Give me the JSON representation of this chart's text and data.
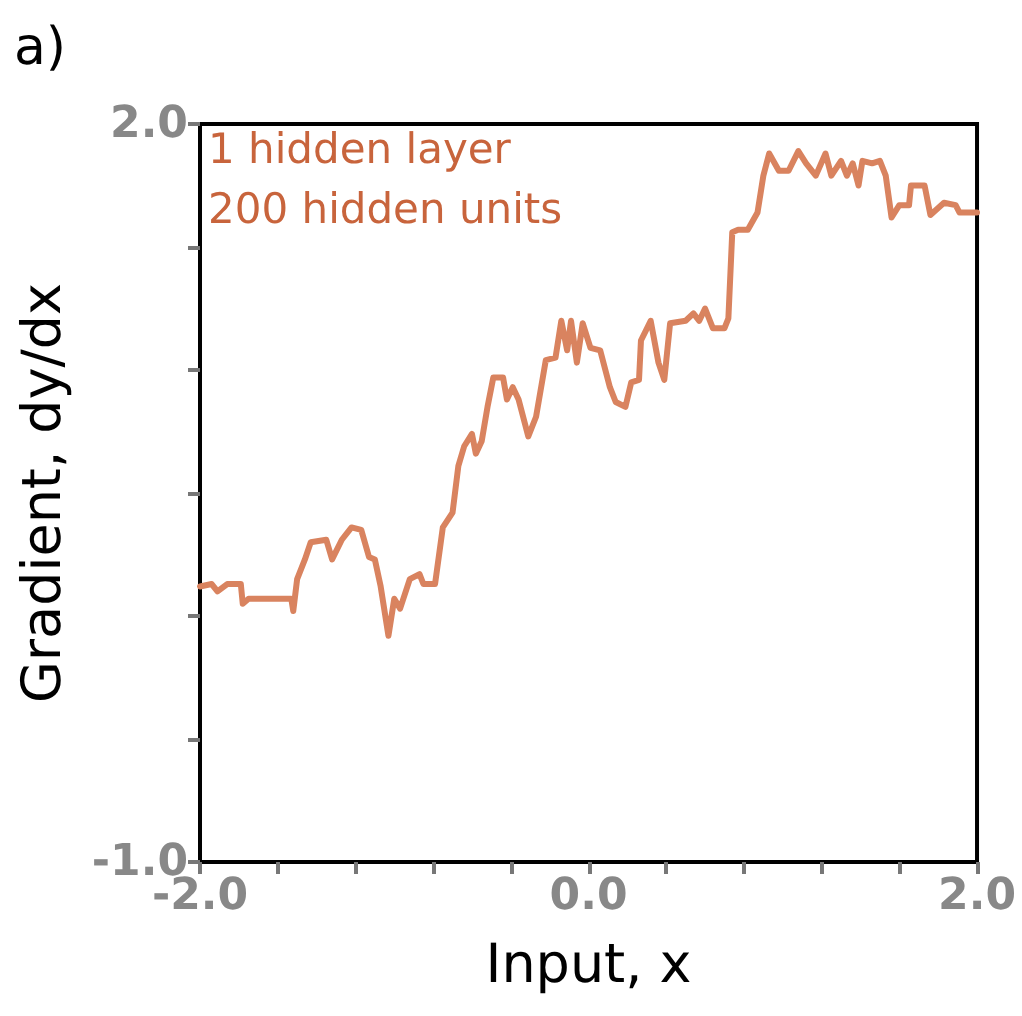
{
  "chart_data": {
    "type": "line",
    "title": "a)",
    "xlabel": "Input, x",
    "ylabel": "Gradient, dy/dx",
    "annotations": [
      "1 hidden layer",
      "200 hidden units"
    ],
    "xlim": [
      -2,
      2
    ],
    "ylim": [
      -1,
      2
    ],
    "xticks": [
      {
        "value": -2,
        "label": "-2.0"
      },
      {
        "value": -1.6,
        "label": null
      },
      {
        "value": -1.2,
        "label": null
      },
      {
        "value": -0.8,
        "label": null
      },
      {
        "value": -0.4,
        "label": null
      },
      {
        "value": 0,
        "label": "0.0"
      },
      {
        "value": 0.4,
        "label": null
      },
      {
        "value": 0.8,
        "label": null
      },
      {
        "value": 1.2,
        "label": null
      },
      {
        "value": 1.6,
        "label": null
      },
      {
        "value": 2,
        "label": "2.0"
      }
    ],
    "yticks": [
      {
        "value": -1,
        "label": "-1.0"
      },
      {
        "value": -0.5,
        "label": null
      },
      {
        "value": 0,
        "label": null
      },
      {
        "value": 0.5,
        "label": null
      },
      {
        "value": 1,
        "label": null
      },
      {
        "value": 1.5,
        "label": null
      },
      {
        "value": 2,
        "label": "2.0"
      }
    ],
    "grid": false,
    "marker": "none",
    "line_style": "solid",
    "series": [
      {
        "color": "#d9835f",
        "x": [
          -2.0,
          -1.94,
          -1.91,
          -1.86,
          -1.79,
          -1.78,
          -1.75,
          -1.53,
          -1.52,
          -1.5,
          -1.46,
          -1.43,
          -1.35,
          -1.32,
          -1.27,
          -1.22,
          -1.17,
          -1.13,
          -1.1,
          -1.07,
          -1.03,
          -1.0,
          -0.97,
          -0.92,
          -0.87,
          -0.85,
          -0.79,
          -0.75,
          -0.7,
          -0.67,
          -0.64,
          -0.6,
          -0.58,
          -0.55,
          -0.52,
          -0.49,
          -0.44,
          -0.42,
          -0.39,
          -0.36,
          -0.31,
          -0.27,
          -0.22,
          -0.17,
          -0.14,
          -0.11,
          -0.09,
          -0.06,
          -0.03,
          0.01,
          0.06,
          0.11,
          0.14,
          0.19,
          0.22,
          0.26,
          0.27,
          0.32,
          0.36,
          0.39,
          0.42,
          0.5,
          0.54,
          0.57,
          0.6,
          0.64,
          0.7,
          0.72,
          0.74,
          0.77,
          0.82,
          0.87,
          0.9,
          0.93,
          0.98,
          1.03,
          1.08,
          1.12,
          1.17,
          1.22,
          1.25,
          1.3,
          1.33,
          1.36,
          1.39,
          1.41,
          1.46,
          1.5,
          1.53,
          1.56,
          1.6,
          1.65,
          1.66,
          1.73,
          1.76,
          1.83,
          1.89,
          1.91,
          2.0
        ],
        "values": [
          0.12,
          0.13,
          0.1,
          0.13,
          0.13,
          0.05,
          0.07,
          0.07,
          0.02,
          0.15,
          0.23,
          0.3,
          0.31,
          0.23,
          0.31,
          0.36,
          0.35,
          0.24,
          0.23,
          0.12,
          -0.08,
          0.07,
          0.03,
          0.15,
          0.17,
          0.13,
          0.13,
          0.36,
          0.42,
          0.61,
          0.69,
          0.74,
          0.66,
          0.71,
          0.85,
          0.97,
          0.97,
          0.88,
          0.93,
          0.88,
          0.73,
          0.81,
          1.04,
          1.05,
          1.2,
          1.08,
          1.2,
          1.03,
          1.19,
          1.09,
          1.08,
          0.93,
          0.87,
          0.85,
          0.95,
          0.96,
          1.12,
          1.2,
          1.03,
          0.96,
          1.19,
          1.2,
          1.23,
          1.2,
          1.25,
          1.17,
          1.17,
          1.21,
          1.56,
          1.57,
          1.57,
          1.64,
          1.79,
          1.88,
          1.81,
          1.81,
          1.89,
          1.84,
          1.79,
          1.88,
          1.79,
          1.85,
          1.79,
          1.84,
          1.75,
          1.85,
          1.84,
          1.85,
          1.79,
          1.62,
          1.67,
          1.67,
          1.75,
          1.75,
          1.63,
          1.68,
          1.67,
          1.64,
          1.64
        ]
      }
    ]
  }
}
